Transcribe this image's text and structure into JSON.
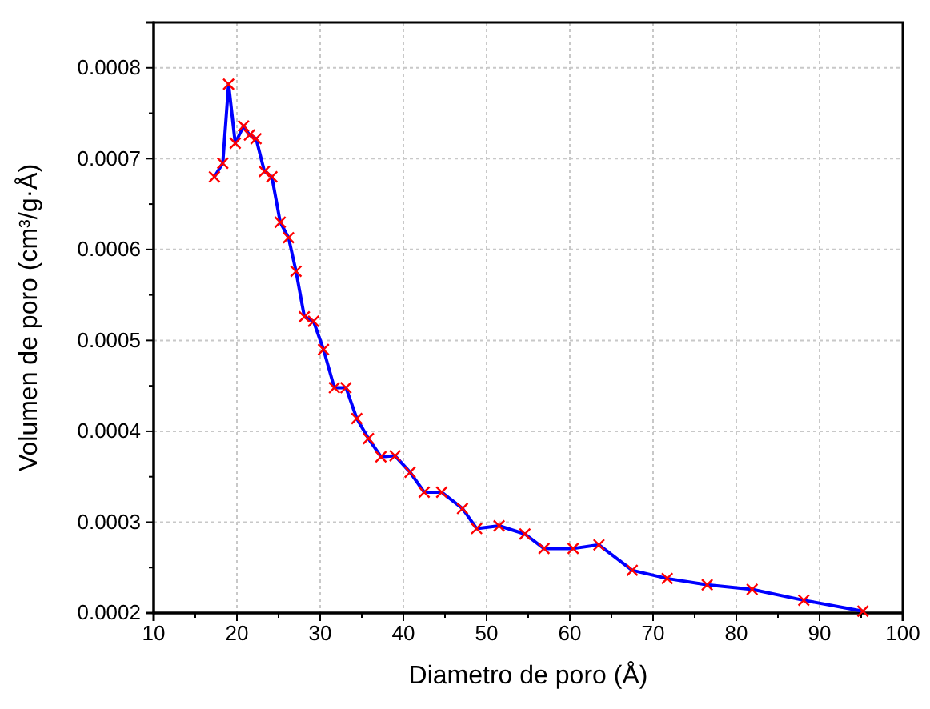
{
  "chart_data": {
    "type": "line",
    "xlabel": "Diametro de poro (Å)",
    "ylabel": "Volumen de poro (cm³/g·Å)",
    "xlim": [
      10,
      100
    ],
    "xticks": [
      10,
      20,
      30,
      40,
      50,
      60,
      70,
      80,
      90,
      100
    ],
    "ylim": [
      0.0002,
      0.00085
    ],
    "yticks": [
      0.0002,
      0.0003,
      0.0004,
      0.0005,
      0.0006,
      0.0007,
      0.0008
    ],
    "grid": true,
    "marker": "cross",
    "line_style": "solid",
    "series": [
      {
        "color": "#0000ff",
        "colors": [
          "#ff0000",
          "#ff0000",
          "#ff0000",
          "#ff0000",
          "#ff0000",
          "#ff0000",
          "#ff0000",
          "#ff0000",
          "#ff0000",
          "#ff0000",
          "#ff0000",
          "#ff0000",
          "#ff0000",
          "#ff0000",
          "#ff0000",
          "#ff0000",
          "#ff0000",
          "#ff0000",
          "#ff0000",
          "#ff0000",
          "#ff0000",
          "#ff0000",
          "#ff0000",
          "#ff0000",
          "#ff0000",
          "#ff0000",
          "#ff0000",
          "#ff0000",
          "#ff0000",
          "#ff0000",
          "#ff0000",
          "#ff0000",
          "#ff0000",
          "#ff0000",
          "#ff0000",
          "#ff0000",
          "#ff0000"
        ],
        "x": [
          17.3,
          18.3,
          19.0,
          19.8,
          20.8,
          21.5,
          22.3,
          23.3,
          24.2,
          25.2,
          26.2,
          27.1,
          28.1,
          29.2,
          30.4,
          31.7,
          33.1,
          34.4,
          35.8,
          37.3,
          39.0,
          40.8,
          42.5,
          44.6,
          47.1,
          48.8,
          51.5,
          54.6,
          56.9,
          60.4,
          63.5,
          67.5,
          71.7,
          76.5,
          81.9,
          88.1,
          95.2
        ],
        "values": [
          0.00068,
          0.000695,
          0.000782,
          0.000717,
          0.000736,
          0.000726,
          0.000722,
          0.000686,
          0.00068,
          0.00063,
          0.000613,
          0.000576,
          0.000526,
          0.000521,
          0.00049,
          0.000448,
          0.000448,
          0.000414,
          0.000392,
          0.000372,
          0.000373,
          0.000355,
          0.000333,
          0.000333,
          0.000315,
          0.000293,
          0.000296,
          0.000287,
          0.000271,
          0.000271,
          0.000275,
          0.000247,
          0.000238,
          0.000231,
          0.000226,
          0.000214,
          0.000202
        ]
      }
    ]
  }
}
